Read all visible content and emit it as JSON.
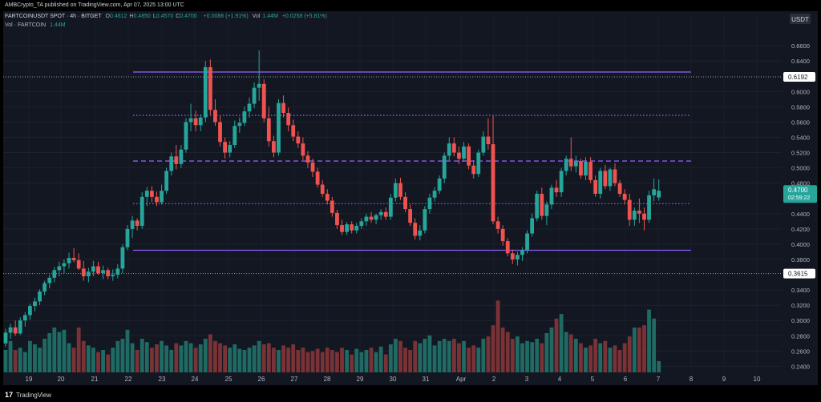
{
  "header": {
    "publisher": "AMBCrypto_TA published on TradingView.com, Apr 07, 2025 13:00 UTC",
    "symbol": "FARTCOINUSDT SPOT · 4h · BITGET",
    "ohlc": [
      {
        "k": "O",
        "v": "0.4612"
      },
      {
        "k": "H",
        "v": "0.4850"
      },
      {
        "k": "L",
        "v": "0.4570"
      },
      {
        "k": "C",
        "v": "0.4700"
      }
    ],
    "change": "+0.0088 (+1.91%)",
    "vol_label": "Vol",
    "vol_value": "1.44M",
    "vol_change": "+0.0258 (+5.81%)",
    "vol_line_label": "Vol · FARTCOIN",
    "vol_line_value": "1.44M",
    "currency_button": "USDT"
  },
  "brand": {
    "logo": "17",
    "name": "TradingView"
  },
  "colors": {
    "up": "#26a69a",
    "down": "#ef5350",
    "vol_up": "#1f6b64",
    "vol_down": "#7a3236",
    "level": "#8a5cf6",
    "bg": "#131722"
  },
  "chart_data": {
    "type": "candlestick",
    "title": "FARTCOINUSDT SPOT · 4h · BITGET",
    "y_axis": {
      "ticks": [
        "0.6600",
        "0.6400",
        "0.6000",
        "0.5800",
        "0.5600",
        "0.5400",
        "0.5200",
        "0.5000",
        "0.4800",
        "0.4400",
        "0.4200",
        "0.4000",
        "0.3800",
        "0.3400",
        "0.3200",
        "0.3000",
        "0.2800",
        "0.2600",
        "0.2400"
      ],
      "ylim": [
        0.232,
        0.678
      ]
    },
    "x_axis": {
      "labels": [
        "19",
        "20",
        "21",
        "22",
        "23",
        "24",
        "25",
        "26",
        "27",
        "28",
        "29",
        "30",
        "31",
        "Apr",
        "2",
        "3",
        "4",
        "5",
        "6",
        "7",
        "8",
        "9",
        "10"
      ]
    },
    "price_tags": [
      {
        "label": "0.6192",
        "value": 0.6192,
        "style": "plain"
      },
      {
        "label": "0.4700",
        "sublabel": "02:59:22",
        "value": 0.47,
        "style": "last"
      },
      {
        "label": "0.3615",
        "value": 0.3615,
        "style": "plain"
      }
    ],
    "horizontal_levels": [
      {
        "value": 0.6256,
        "style": "solid"
      },
      {
        "value": 0.5688,
        "style": "dotted"
      },
      {
        "value": 0.509,
        "style": "dashed"
      },
      {
        "value": 0.453,
        "style": "dotted"
      },
      {
        "value": 0.392,
        "style": "solid"
      }
    ],
    "reference_lines": [
      0.6192,
      0.3615
    ],
    "candles": [
      [
        0.27,
        0.289,
        0.266,
        0.284
      ],
      [
        0.284,
        0.296,
        0.276,
        0.291
      ],
      [
        0.291,
        0.3,
        0.28,
        0.283
      ],
      [
        0.283,
        0.304,
        0.281,
        0.3
      ],
      [
        0.3,
        0.311,
        0.292,
        0.307
      ],
      [
        0.307,
        0.322,
        0.301,
        0.319
      ],
      [
        0.319,
        0.33,
        0.312,
        0.325
      ],
      [
        0.325,
        0.341,
        0.32,
        0.338
      ],
      [
        0.338,
        0.352,
        0.333,
        0.349
      ],
      [
        0.349,
        0.36,
        0.342,
        0.356
      ],
      [
        0.356,
        0.37,
        0.35,
        0.366
      ],
      [
        0.366,
        0.377,
        0.358,
        0.371
      ],
      [
        0.371,
        0.38,
        0.362,
        0.375
      ],
      [
        0.375,
        0.389,
        0.368,
        0.382
      ],
      [
        0.382,
        0.395,
        0.376,
        0.379
      ],
      [
        0.379,
        0.388,
        0.366,
        0.368
      ],
      [
        0.368,
        0.378,
        0.352,
        0.358
      ],
      [
        0.358,
        0.369,
        0.35,
        0.364
      ],
      [
        0.364,
        0.378,
        0.358,
        0.371
      ],
      [
        0.371,
        0.377,
        0.36,
        0.362
      ],
      [
        0.362,
        0.372,
        0.354,
        0.366
      ],
      [
        0.366,
        0.369,
        0.354,
        0.358
      ],
      [
        0.358,
        0.367,
        0.352,
        0.36
      ],
      [
        0.36,
        0.374,
        0.355,
        0.368
      ],
      [
        0.368,
        0.4,
        0.362,
        0.396
      ],
      [
        0.396,
        0.425,
        0.392,
        0.42
      ],
      [
        0.42,
        0.437,
        0.408,
        0.431
      ],
      [
        0.431,
        0.434,
        0.418,
        0.424
      ],
      [
        0.424,
        0.468,
        0.42,
        0.462
      ],
      [
        0.462,
        0.475,
        0.45,
        0.47
      ],
      [
        0.47,
        0.476,
        0.455,
        0.462
      ],
      [
        0.462,
        0.469,
        0.45,
        0.455
      ],
      [
        0.455,
        0.478,
        0.452,
        0.47
      ],
      [
        0.47,
        0.5,
        0.466,
        0.496
      ],
      [
        0.496,
        0.52,
        0.49,
        0.515
      ],
      [
        0.515,
        0.53,
        0.498,
        0.505
      ],
      [
        0.505,
        0.53,
        0.5,
        0.524
      ],
      [
        0.524,
        0.565,
        0.52,
        0.56
      ],
      [
        0.56,
        0.584,
        0.548,
        0.565
      ],
      [
        0.565,
        0.575,
        0.548,
        0.556
      ],
      [
        0.556,
        0.57,
        0.548,
        0.566
      ],
      [
        0.566,
        0.64,
        0.56,
        0.632
      ],
      [
        0.632,
        0.642,
        0.57,
        0.576
      ],
      [
        0.576,
        0.59,
        0.555,
        0.56
      ],
      [
        0.56,
        0.568,
        0.528,
        0.534
      ],
      [
        0.534,
        0.54,
        0.512,
        0.52
      ],
      [
        0.52,
        0.535,
        0.514,
        0.53
      ],
      [
        0.53,
        0.562,
        0.526,
        0.555
      ],
      [
        0.555,
        0.566,
        0.546,
        0.559
      ],
      [
        0.559,
        0.58,
        0.555,
        0.574
      ],
      [
        0.574,
        0.592,
        0.566,
        0.584
      ],
      [
        0.584,
        0.612,
        0.578,
        0.605
      ],
      [
        0.605,
        0.654,
        0.588,
        0.61
      ],
      [
        0.61,
        0.616,
        0.56,
        0.565
      ],
      [
        0.565,
        0.58,
        0.528,
        0.535
      ],
      [
        0.535,
        0.542,
        0.514,
        0.52
      ],
      [
        0.52,
        0.59,
        0.516,
        0.585
      ],
      [
        0.585,
        0.595,
        0.566,
        0.572
      ],
      [
        0.572,
        0.579,
        0.548,
        0.556
      ],
      [
        0.556,
        0.563,
        0.535,
        0.541
      ],
      [
        0.541,
        0.548,
        0.526,
        0.532
      ],
      [
        0.532,
        0.54,
        0.51,
        0.516
      ],
      [
        0.516,
        0.522,
        0.5,
        0.507
      ],
      [
        0.507,
        0.512,
        0.488,
        0.495
      ],
      [
        0.495,
        0.5,
        0.474,
        0.478
      ],
      [
        0.478,
        0.484,
        0.462,
        0.466
      ],
      [
        0.466,
        0.472,
        0.452,
        0.457
      ],
      [
        0.457,
        0.462,
        0.436,
        0.441
      ],
      [
        0.441,
        0.445,
        0.42,
        0.425
      ],
      [
        0.425,
        0.432,
        0.412,
        0.416
      ],
      [
        0.416,
        0.429,
        0.412,
        0.426
      ],
      [
        0.426,
        0.43,
        0.414,
        0.418
      ],
      [
        0.418,
        0.428,
        0.414,
        0.424
      ],
      [
        0.424,
        0.434,
        0.42,
        0.43
      ],
      [
        0.43,
        0.44,
        0.424,
        0.436
      ],
      [
        0.436,
        0.442,
        0.428,
        0.432
      ],
      [
        0.432,
        0.44,
        0.426,
        0.438
      ],
      [
        0.438,
        0.446,
        0.432,
        0.442
      ],
      [
        0.442,
        0.448,
        0.432,
        0.436
      ],
      [
        0.436,
        0.466,
        0.432,
        0.461
      ],
      [
        0.461,
        0.486,
        0.456,
        0.48
      ],
      [
        0.48,
        0.487,
        0.458,
        0.462
      ],
      [
        0.462,
        0.468,
        0.442,
        0.446
      ],
      [
        0.446,
        0.452,
        0.424,
        0.428
      ],
      [
        0.428,
        0.434,
        0.406,
        0.411
      ],
      [
        0.411,
        0.425,
        0.405,
        0.418
      ],
      [
        0.418,
        0.45,
        0.414,
        0.446
      ],
      [
        0.446,
        0.466,
        0.44,
        0.461
      ],
      [
        0.461,
        0.475,
        0.456,
        0.47
      ],
      [
        0.47,
        0.49,
        0.466,
        0.486
      ],
      [
        0.486,
        0.52,
        0.48,
        0.516
      ],
      [
        0.516,
        0.54,
        0.51,
        0.532
      ],
      [
        0.532,
        0.54,
        0.515,
        0.52
      ],
      [
        0.52,
        0.528,
        0.505,
        0.512
      ],
      [
        0.512,
        0.534,
        0.508,
        0.528
      ],
      [
        0.528,
        0.532,
        0.498,
        0.503
      ],
      [
        0.503,
        0.51,
        0.486,
        0.492
      ],
      [
        0.492,
        0.524,
        0.488,
        0.52
      ],
      [
        0.52,
        0.548,
        0.516,
        0.541
      ],
      [
        0.541,
        0.565,
        0.524,
        0.531
      ],
      [
        0.531,
        0.568,
        0.426,
        0.43
      ],
      [
        0.43,
        0.436,
        0.414,
        0.42
      ],
      [
        0.42,
        0.425,
        0.398,
        0.404
      ],
      [
        0.404,
        0.408,
        0.384,
        0.388
      ],
      [
        0.388,
        0.393,
        0.374,
        0.38
      ],
      [
        0.38,
        0.39,
        0.372,
        0.386
      ],
      [
        0.386,
        0.396,
        0.378,
        0.392
      ],
      [
        0.392,
        0.418,
        0.388,
        0.414
      ],
      [
        0.414,
        0.44,
        0.41,
        0.434
      ],
      [
        0.434,
        0.47,
        0.43,
        0.466
      ],
      [
        0.466,
        0.474,
        0.432,
        0.437
      ],
      [
        0.437,
        0.456,
        0.425,
        0.452
      ],
      [
        0.452,
        0.478,
        0.446,
        0.474
      ],
      [
        0.474,
        0.484,
        0.462,
        0.468
      ],
      [
        0.468,
        0.5,
        0.462,
        0.496
      ],
      [
        0.496,
        0.516,
        0.49,
        0.512
      ],
      [
        0.512,
        0.54,
        0.496,
        0.502
      ],
      [
        0.502,
        0.516,
        0.494,
        0.509
      ],
      [
        0.509,
        0.512,
        0.486,
        0.49
      ],
      [
        0.49,
        0.514,
        0.484,
        0.508
      ],
      [
        0.508,
        0.514,
        0.48,
        0.484
      ],
      [
        0.484,
        0.49,
        0.462,
        0.466
      ],
      [
        0.466,
        0.5,
        0.46,
        0.496
      ],
      [
        0.496,
        0.504,
        0.472,
        0.476
      ],
      [
        0.476,
        0.5,
        0.47,
        0.498
      ],
      [
        0.498,
        0.506,
        0.476,
        0.48
      ],
      [
        0.48,
        0.484,
        0.462,
        0.466
      ],
      [
        0.466,
        0.472,
        0.452,
        0.458
      ],
      [
        0.458,
        0.466,
        0.424,
        0.432
      ],
      [
        0.432,
        0.448,
        0.424,
        0.444
      ],
      [
        0.444,
        0.46,
        0.428,
        0.44
      ],
      [
        0.44,
        0.448,
        0.418,
        0.432
      ],
      [
        0.432,
        0.47,
        0.428,
        0.464
      ],
      [
        0.464,
        0.486,
        0.456,
        0.472
      ],
      [
        0.4612,
        0.485,
        0.457,
        0.47
      ]
    ],
    "volume": [
      0.2,
      0.28,
      0.2,
      0.22,
      0.18,
      0.28,
      0.25,
      0.22,
      0.3,
      0.35,
      0.4,
      0.36,
      0.38,
      0.26,
      0.22,
      0.4,
      0.28,
      0.24,
      0.22,
      0.18,
      0.2,
      0.16,
      0.22,
      0.28,
      0.3,
      0.38,
      0.26,
      0.2,
      0.3,
      0.27,
      0.22,
      0.25,
      0.28,
      0.24,
      0.2,
      0.26,
      0.24,
      0.28,
      0.26,
      0.22,
      0.25,
      0.3,
      0.34,
      0.28,
      0.26,
      0.24,
      0.22,
      0.25,
      0.21,
      0.2,
      0.22,
      0.24,
      0.28,
      0.25,
      0.26,
      0.22,
      0.2,
      0.24,
      0.22,
      0.25,
      0.2,
      0.22,
      0.18,
      0.19,
      0.21,
      0.18,
      0.22,
      0.2,
      0.18,
      0.22,
      0.2,
      0.16,
      0.21,
      0.18,
      0.2,
      0.22,
      0.18,
      0.23,
      0.16,
      0.25,
      0.3,
      0.28,
      0.22,
      0.2,
      0.28,
      0.26,
      0.3,
      0.33,
      0.24,
      0.28,
      0.3,
      0.28,
      0.3,
      0.26,
      0.28,
      0.22,
      0.24,
      0.22,
      0.3,
      0.32,
      0.42,
      0.64,
      0.4,
      0.36,
      0.3,
      0.32,
      0.26,
      0.28,
      0.27,
      0.3,
      0.26,
      0.35,
      0.4,
      0.48,
      0.52,
      0.36,
      0.34,
      0.3,
      0.26,
      0.22,
      0.24,
      0.3,
      0.26,
      0.28,
      0.22,
      0.24,
      0.2,
      0.26,
      0.32,
      0.4,
      0.4,
      0.42,
      0.56,
      0.48,
      0.1
    ]
  }
}
